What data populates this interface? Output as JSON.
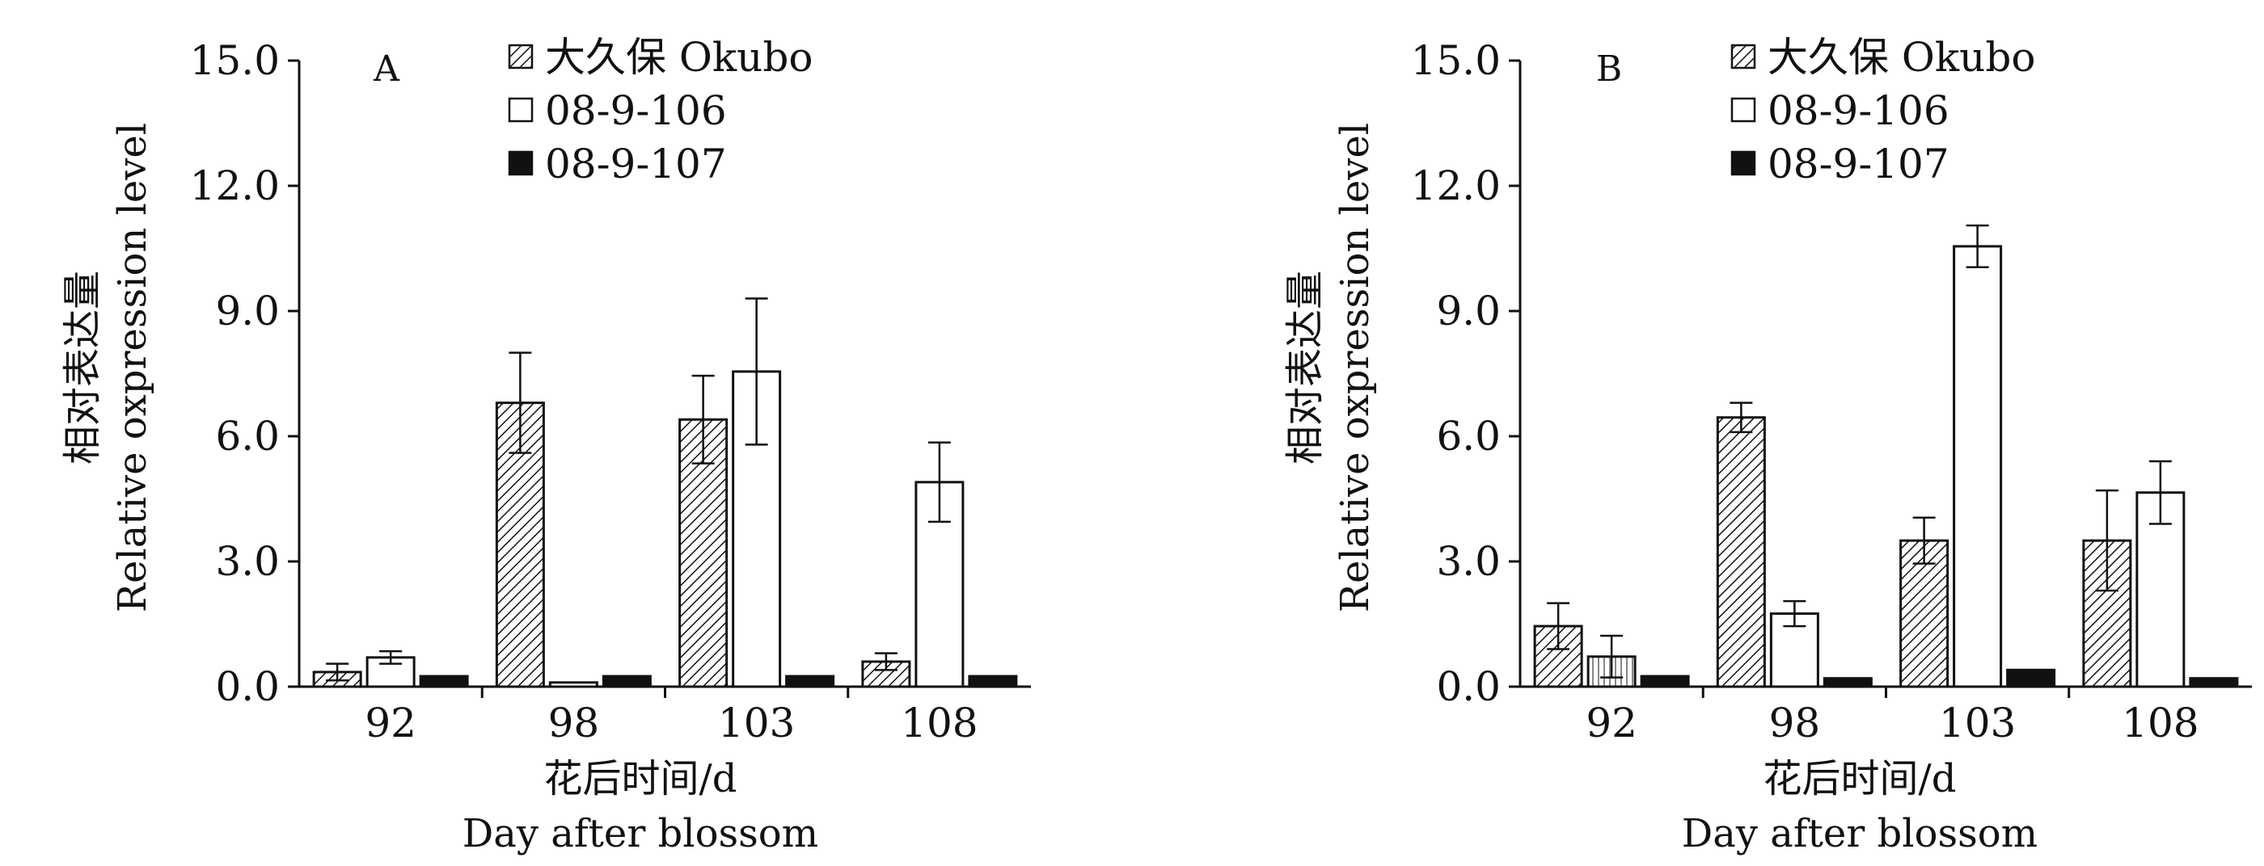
{
  "chart_data": [
    {
      "type": "bar",
      "panel": "A",
      "categories": [
        "92",
        "98",
        "103",
        "108"
      ],
      "ylim": [
        0,
        15
      ],
      "yticks": [
        "0.0",
        "3.0",
        "6.0",
        "9.0",
        "12.0",
        "15.0"
      ],
      "ylabel_cn": "相对表达量",
      "ylabel_en": "Relative oxpression level",
      "xlabel_cn": "花后时间/d",
      "xlabel_en": "Day after blossom",
      "legend": "top",
      "series": [
        {
          "name": "大久保 Okubo",
          "pattern": "hatch",
          "values": [
            0.35,
            6.8,
            6.4,
            0.6
          ],
          "errors": [
            0.2,
            1.2,
            1.05,
            0.2
          ]
        },
        {
          "name": "08-9-106",
          "pattern": "white",
          "values": [
            0.7,
            0.1,
            7.55,
            4.9
          ],
          "errors": [
            0.15,
            0.0,
            1.75,
            0.95
          ]
        },
        {
          "name": "08-9-107",
          "pattern": "black",
          "values": [
            0.25,
            0.25,
            0.25,
            0.25
          ],
          "errors": [
            0,
            0,
            0,
            0
          ]
        }
      ]
    },
    {
      "type": "bar",
      "panel": "B",
      "categories": [
        "92",
        "98",
        "103",
        "108"
      ],
      "ylim": [
        0,
        15
      ],
      "yticks": [
        "0.0",
        "3.0",
        "6.0",
        "9.0",
        "12.0",
        "15.0"
      ],
      "ylabel_cn": "相对表达量",
      "ylabel_en": "Relative oxpression level",
      "xlabel_cn": "花后时间/d",
      "xlabel_en": "Day after blossom",
      "legend": "top",
      "series": [
        {
          "name": "大久保 Okubo",
          "pattern": "hatch",
          "values": [
            1.45,
            6.45,
            3.5,
            3.5
          ],
          "errors": [
            0.55,
            0.35,
            0.55,
            1.2
          ]
        },
        {
          "name": "08-9-106",
          "pattern": "white",
          "values": [
            0.72,
            1.75,
            10.55,
            4.65
          ],
          "errors": [
            0.5,
            0.3,
            0.5,
            0.75
          ]
        },
        {
          "name": "08-9-107",
          "pattern": "black",
          "values": [
            0.25,
            0.2,
            0.4,
            0.2
          ],
          "errors": [
            0,
            0,
            0,
            0
          ]
        }
      ]
    }
  ]
}
